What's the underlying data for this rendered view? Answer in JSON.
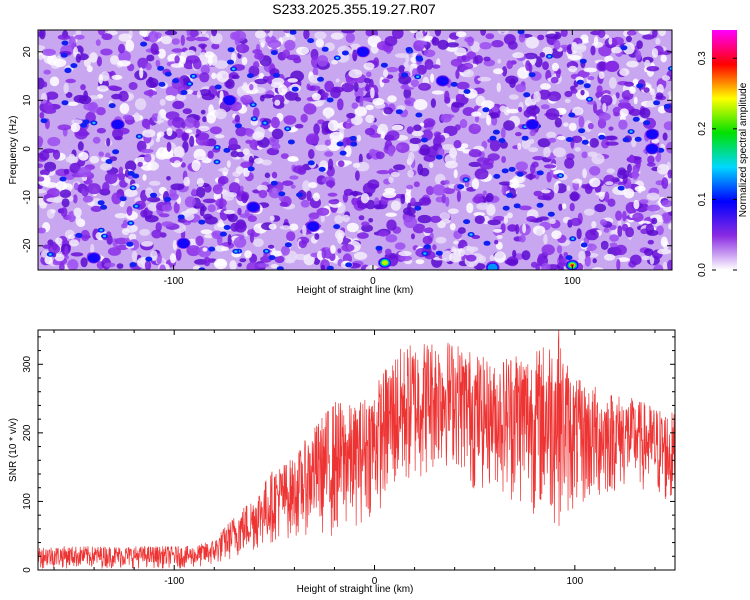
{
  "title": "S233.2025.355.19.27.R07",
  "chart_data": [
    {
      "type": "heatmap",
      "xlabel": "Height of straight line (km)",
      "ylabel": "Frequency (Hz)",
      "xlim": [
        -168,
        150
      ],
      "ylim": [
        -25,
        24.5
      ],
      "xticks": [
        -100,
        0,
        100
      ],
      "yticks": [
        -20,
        -10,
        0,
        10,
        20
      ],
      "colorbar": {
        "label": "Normalized spectral amplitude",
        "range": [
          0.0,
          0.34
        ],
        "ticks": [
          0.0,
          0.1,
          0.2,
          0.3
        ],
        "colors": [
          "#ffffff",
          "#8a2be2",
          "#0000ff",
          "#00d8ff",
          "#00e000",
          "#ffff00",
          "#ff0000",
          "#ff00ff"
        ]
      },
      "hotspots": [
        {
          "x": 6,
          "y": -23.5,
          "value": 0.25
        },
        {
          "x": 100,
          "y": -24,
          "value": 0.3
        },
        {
          "x": -140,
          "y": -22.5,
          "value": 0.12
        },
        {
          "x": -95,
          "y": -19.5,
          "value": 0.1
        },
        {
          "x": -60,
          "y": -12,
          "value": 0.11
        },
        {
          "x": 60,
          "y": -24.5,
          "value": 0.14
        },
        {
          "x": 140,
          "y": 0,
          "value": 0.12
        },
        {
          "x": 140,
          "y": 3,
          "value": 0.1
        },
        {
          "x": -128,
          "y": 5,
          "value": 0.1
        },
        {
          "x": -72,
          "y": 10,
          "value": 0.09
        },
        {
          "x": -5,
          "y": 20,
          "value": 0.09
        },
        {
          "x": 35,
          "y": 14,
          "value": 0.1
        },
        {
          "x": 80,
          "y": 5,
          "value": 0.1
        },
        {
          "x": 120,
          "y": 17,
          "value": 0.08
        },
        {
          "x": -30,
          "y": -16,
          "value": 0.09
        }
      ],
      "background_level": 0.03
    },
    {
      "type": "line",
      "xlabel": "Height of straight line (km)",
      "ylabel": "SNR (10 * v/v)",
      "xlim": [
        -168,
        150
      ],
      "ylim": [
        0,
        350
      ],
      "xticks": [
        -100,
        0,
        100
      ],
      "yticks": [
        0,
        100,
        200,
        300
      ],
      "color": "#ee3333",
      "envelope": {
        "x": [
          -168,
          -90,
          -80,
          -70,
          -60,
          -50,
          -40,
          -30,
          -20,
          -10,
          0,
          10,
          20,
          30,
          40,
          50,
          60,
          70,
          80,
          90,
          100,
          110,
          120,
          130,
          140,
          150
        ],
        "low": [
          2,
          2,
          5,
          15,
          25,
          40,
          45,
          55,
          40,
          60,
          80,
          100,
          120,
          140,
          150,
          110,
          120,
          90,
          80,
          60,
          80,
          90,
          110,
          120,
          100,
          80
        ],
        "high": [
          35,
          35,
          45,
          80,
          110,
          150,
          165,
          210,
          250,
          240,
          270,
          320,
          335,
          340,
          335,
          320,
          300,
          330,
          320,
          350,
          280,
          270,
          260,
          250,
          240,
          230
        ]
      },
      "peak": {
        "x": 92,
        "y": 350
      }
    }
  ]
}
